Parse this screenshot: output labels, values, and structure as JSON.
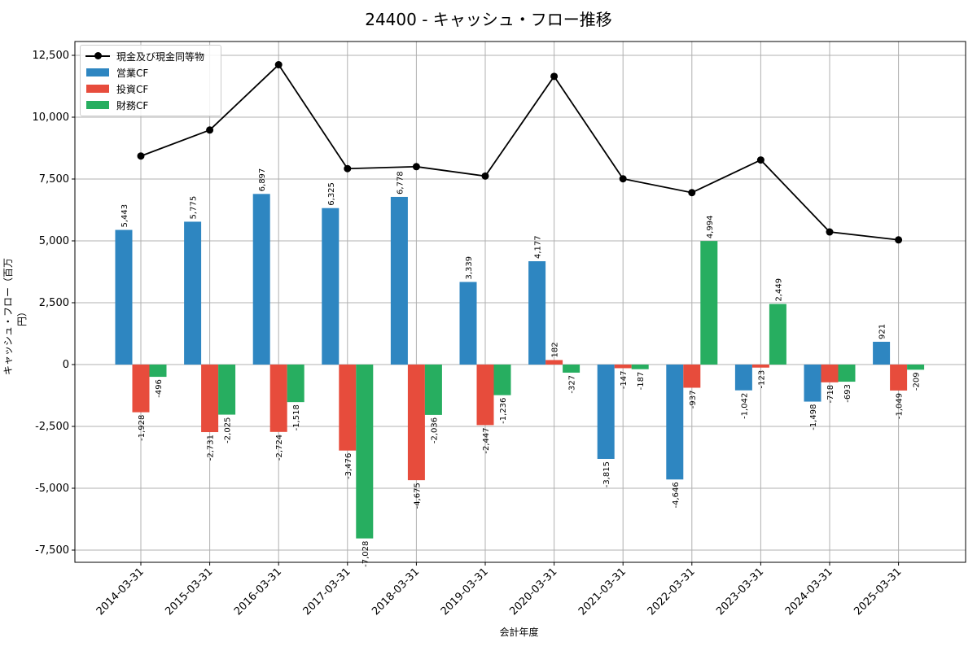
{
  "chart_data": {
    "type": "bar",
    "title": "24400 - キャッシュ・フロー推移",
    "xlabel": "会計年度",
    "ylabel": "キャッシュ・フロー（百万円）",
    "categories": [
      "2014-03-31",
      "2015-03-31",
      "2016-03-31",
      "2017-03-31",
      "2018-03-31",
      "2019-03-31",
      "2020-03-31",
      "2021-03-31",
      "2022-03-31",
      "2023-03-31",
      "2024-03-31",
      "2025-03-31"
    ],
    "ylim": [
      -8000,
      13000
    ],
    "yticks": [
      -7500,
      -5000,
      -2500,
      0,
      2500,
      5000,
      7500,
      10000,
      12500
    ],
    "ytick_labels": [
      "-7,500",
      "-5,000",
      "-2,500",
      "0",
      "2,500",
      "5,000",
      "7,500",
      "10,000",
      "12,500"
    ],
    "grid": true,
    "legend_position": "top-left",
    "series": [
      {
        "name": "営業CF",
        "kind": "bar",
        "color": "#2e86c1",
        "values": [
          5443,
          5775,
          6897,
          6325,
          6778,
          3339,
          4177,
          -3815,
          -4646,
          -1042,
          -1498,
          921
        ]
      },
      {
        "name": "投資CF",
        "kind": "bar",
        "color": "#e74c3c",
        "values": [
          -1928,
          -2731,
          -2724,
          -3476,
          -4675,
          -2447,
          182,
          -147,
          -937,
          -123,
          -718,
          -1049
        ]
      },
      {
        "name": "財務CF",
        "kind": "bar",
        "color": "#27ae60",
        "values": [
          -496,
          -2025,
          -1518,
          -7028,
          -2036,
          -1236,
          -327,
          -187,
          4994,
          2449,
          -693,
          -209
        ]
      },
      {
        "name": "現金及び現金同等物",
        "kind": "line",
        "color": "#000000",
        "values": [
          8430,
          9480,
          12120,
          7920,
          8000,
          7620,
          11650,
          7510,
          6950,
          8270,
          5360,
          5040
        ]
      }
    ],
    "bar_labels": [
      [
        "5,443",
        "5,775",
        "6,897",
        "6,325",
        "6,778",
        "3,339",
        "4,177",
        "-3,815",
        "-4,646",
        "-1,042",
        "-1,498",
        "921"
      ],
      [
        "-1,928",
        "-2,731",
        "-2,724",
        "-3,476",
        "-4,675",
        "-2,447",
        "182",
        "-147",
        "-937",
        "-123",
        "-718",
        "-1,049"
      ],
      [
        "-496",
        "-2,025",
        "-1,518",
        "-7,028",
        "-2,036",
        "-1,236",
        "-327",
        "-187",
        "4,994",
        "2,449",
        "-693",
        "-209"
      ]
    ]
  }
}
